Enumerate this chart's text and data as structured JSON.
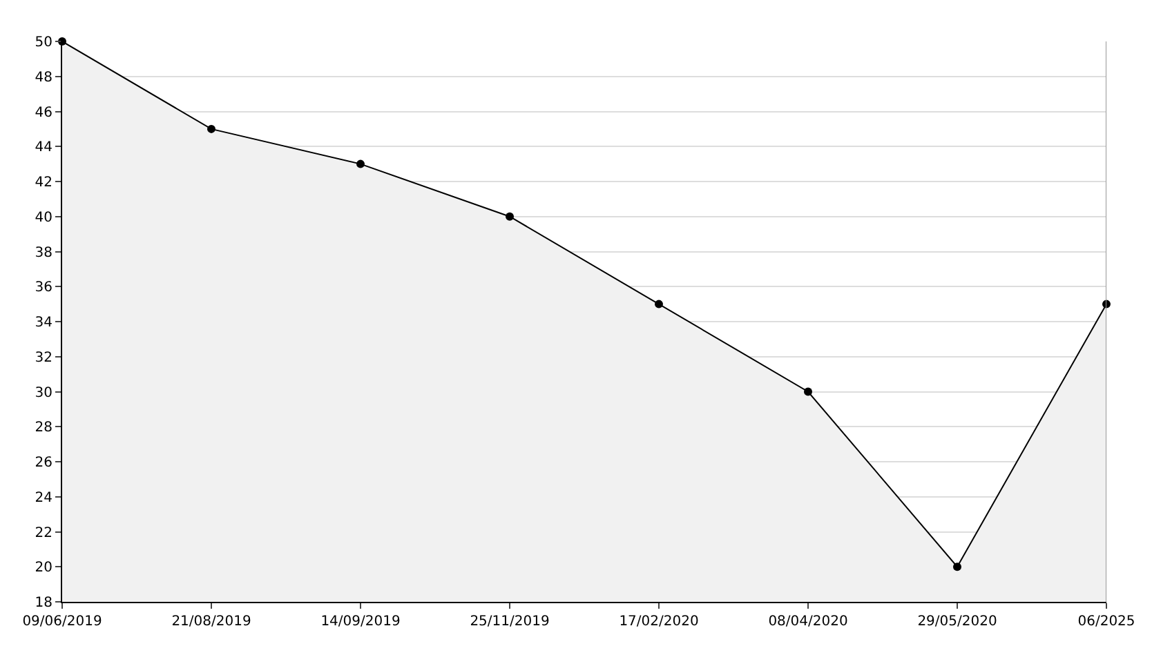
{
  "chart_data": {
    "type": "area",
    "categories": [
      "09/06/2019",
      "21/08/2019",
      "14/09/2019",
      "25/11/2019",
      "17/02/2020",
      "08/04/2020",
      "29/05/2020",
      "06/2025"
    ],
    "series": [
      {
        "color": "#000000",
        "values": [
          50,
          45,
          43,
          40,
          35,
          30,
          20,
          35
        ]
      }
    ],
    "ylim": [
      18,
      50
    ],
    "yticks": [
      18,
      20,
      22,
      24,
      26,
      28,
      30,
      32,
      34,
      36,
      38,
      40,
      42,
      44,
      46,
      48,
      50
    ],
    "grid": "y",
    "marker": "circle",
    "line_style": "solid"
  }
}
